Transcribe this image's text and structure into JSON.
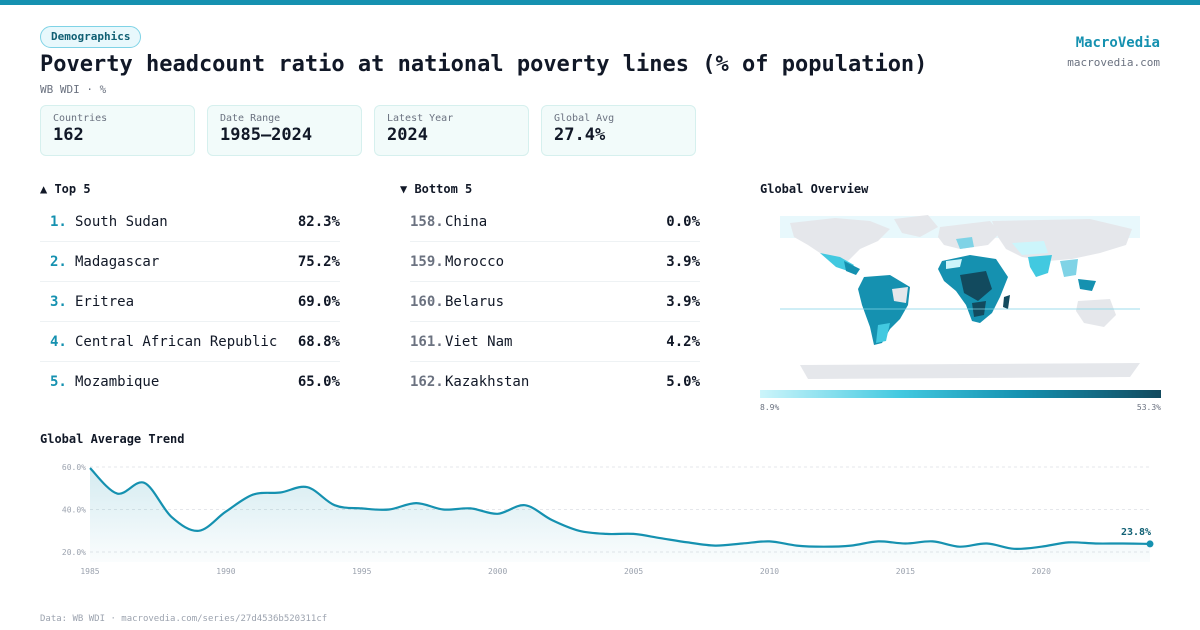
{
  "header": {
    "tag": "Demographics",
    "title": "Poverty headcount ratio at national poverty lines (% of population)",
    "subtitle": "WB WDI · %",
    "brand": "MacroVedia",
    "brand_url": "macrovedia.com"
  },
  "stats": [
    {
      "label": "Countries",
      "value": "162"
    },
    {
      "label": "Date Range",
      "value": "1985–2024"
    },
    {
      "label": "Latest Year",
      "value": "2024"
    },
    {
      "label": "Global Avg",
      "value": "27.4%"
    }
  ],
  "top5": {
    "heading": "▲ Top 5",
    "items": [
      {
        "rank": "1.",
        "name": "South Sudan",
        "value": "82.3%"
      },
      {
        "rank": "2.",
        "name": "Madagascar",
        "value": "75.2%"
      },
      {
        "rank": "3.",
        "name": "Eritrea",
        "value": "69.0%"
      },
      {
        "rank": "4.",
        "name": "Central African Republic",
        "value": "68.8%"
      },
      {
        "rank": "5.",
        "name": "Mozambique",
        "value": "65.0%"
      }
    ]
  },
  "bottom5": {
    "heading": "▼ Bottom 5",
    "items": [
      {
        "rank": "158.",
        "name": "China",
        "value": "0.0%"
      },
      {
        "rank": "159.",
        "name": "Morocco",
        "value": "3.9%"
      },
      {
        "rank": "160.",
        "name": "Belarus",
        "value": "3.9%"
      },
      {
        "rank": "161.",
        "name": "Viet Nam",
        "value": "4.2%"
      },
      {
        "rank": "162.",
        "name": "Kazakhstan",
        "value": "5.0%"
      }
    ]
  },
  "map": {
    "heading": "Global Overview",
    "legend_min": "8.9%",
    "legend_max": "53.3%",
    "colors": {
      "no_data": "#e5e7eb",
      "low": "#ccf5fb",
      "mid": "#1591b0",
      "high": "#124a5e"
    }
  },
  "trend": {
    "heading": "Global Average Trend"
  },
  "chart_data": {
    "type": "line",
    "x": [
      1985,
      1986,
      1987,
      1988,
      1989,
      1990,
      1991,
      1992,
      1993,
      1994,
      1995,
      1996,
      1997,
      1998,
      1999,
      2000,
      2001,
      2002,
      2003,
      2004,
      2005,
      2006,
      2007,
      2008,
      2009,
      2010,
      2011,
      2012,
      2013,
      2014,
      2015,
      2016,
      2017,
      2018,
      2019,
      2020,
      2021,
      2022,
      2023,
      2024
    ],
    "y": [
      59.5,
      47.5,
      52.5,
      36.5,
      30,
      39,
      47,
      48,
      50.5,
      42,
      40.5,
      40,
      43,
      40,
      40.5,
      38,
      42,
      35,
      30,
      28.5,
      28.5,
      26.5,
      24.5,
      23,
      24,
      25,
      23,
      22.5,
      23,
      25,
      24,
      25,
      22.5,
      24,
      21.5,
      22.5,
      24.5,
      24,
      24,
      23.8
    ],
    "xticks": [
      "1985",
      "1990",
      "1995",
      "2000",
      "2005",
      "2010",
      "2015",
      "2020"
    ],
    "yticks": [
      "60.0%",
      "40.0%",
      "20.0%"
    ],
    "ylim": [
      20,
      60
    ],
    "xlim": [
      1985,
      2024
    ],
    "end_label": "23.8%",
    "grid": true,
    "color": "#1591b0"
  },
  "footer": "Data: WB WDI · macrovedia.com/series/27d4536b520311cf"
}
